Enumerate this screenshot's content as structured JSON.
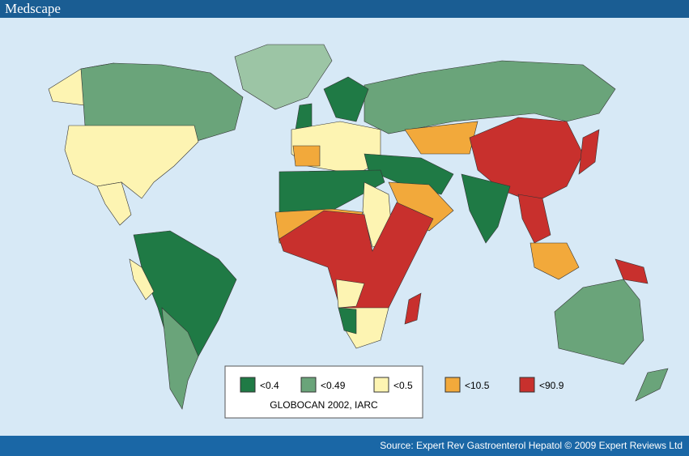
{
  "header": {
    "brand": "Medscape"
  },
  "legend": {
    "items": [
      {
        "name": "<0.4",
        "color": "#1f7a45"
      },
      {
        "name": "<0.49",
        "color": "#6aa47a"
      },
      {
        "name": "<0.5",
        "color": "#fdf4b2"
      },
      {
        "name": "<10.5",
        "color": "#f2a93b"
      },
      {
        "name": "<90.9",
        "color": "#c8302d"
      }
    ],
    "caption": "GLOBOCAN 2002, IARC"
  },
  "footer": {
    "source": "Source: Expert Rev Gastroenterol Hepatol © 2009 Expert Reviews Ltd"
  }
}
